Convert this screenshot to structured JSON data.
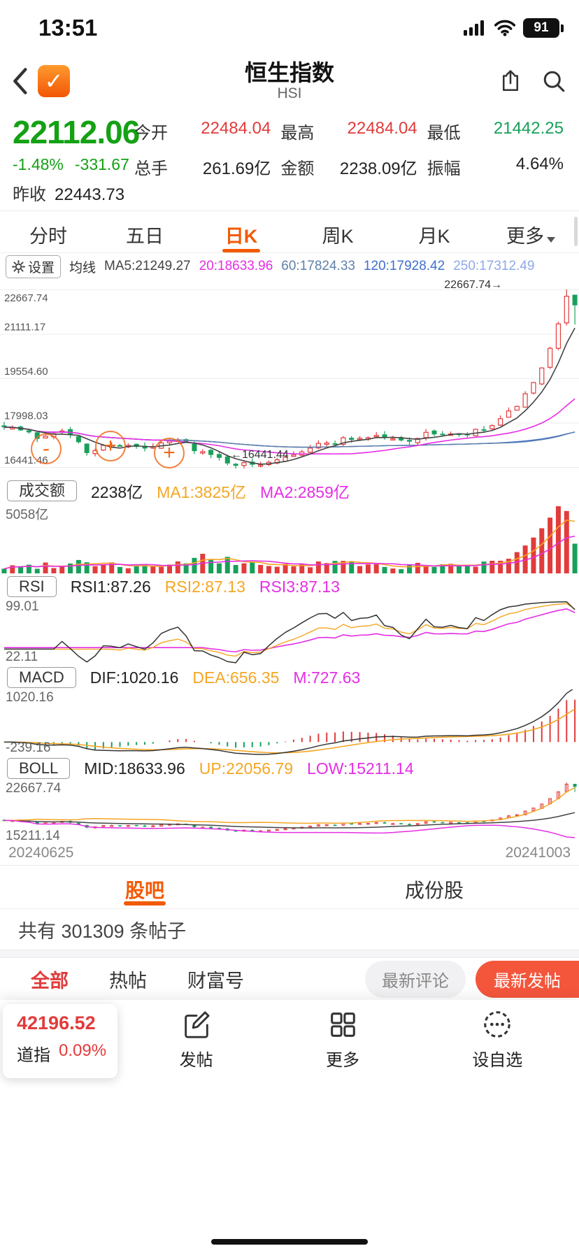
{
  "colors": {
    "up": "#e23b3b",
    "down": "#17a05a",
    "price_green": "#14a114",
    "accent_orange": "#f25a05",
    "line_orange": "#f5a623",
    "line_magenta": "#e52ee5",
    "line_dark": "#444444",
    "ma60": "#5f81a8",
    "ma120": "#3e6fd0",
    "ma250": "#8fa8e8",
    "grid": "#ececec",
    "axis_text": "#555555"
  },
  "status_bar": {
    "time": "13:51",
    "battery_pct": "91"
  },
  "header": {
    "title": "恒生指数",
    "subtitle": "HSI",
    "app_icon_glyph": "✓"
  },
  "quote": {
    "price": "22112.06",
    "change_pct": "-1.48%",
    "change_abs": "-331.67",
    "prev_close_label": "昨收",
    "prev_close_value": "22443.73",
    "stats": [
      {
        "label": "今开",
        "value": "22484.04",
        "color": "#e23b3b"
      },
      {
        "label": "最高",
        "value": "22484.04",
        "color": "#e23b3b"
      },
      {
        "label": "最低",
        "value": "21442.25",
        "color": "#17a05a"
      },
      {
        "label": "总手",
        "value": "261.69亿",
        "color": "#222222"
      },
      {
        "label": "金额",
        "value": "2238.09亿",
        "color": "#222222"
      },
      {
        "label": "振幅",
        "value": "4.64%",
        "color": "#222222"
      }
    ]
  },
  "period_tabs": [
    {
      "label": "分时"
    },
    {
      "label": "五日"
    },
    {
      "label": "日K"
    },
    {
      "label": "周K"
    },
    {
      "label": "月K"
    },
    {
      "label": "更多"
    }
  ],
  "ma_bar": {
    "settings_label": "设置",
    "prefix": "均线",
    "items": [
      {
        "text": "MA5:21249.27",
        "color": "#444444"
      },
      {
        "text": "20:18633.96",
        "color": "#e52ee5"
      },
      {
        "text": "60:17824.33",
        "color": "#5f81a8"
      },
      {
        "text": "120:17928.42",
        "color": "#3e6fd0"
      },
      {
        "text": "250:17312.49",
        "color": "#8fa8e8"
      }
    ]
  },
  "indicators": {
    "volume": {
      "box": "成交额",
      "items": [
        {
          "text": "2238亿",
          "color": "#222222"
        },
        {
          "text": "MA1:3825亿",
          "color": "#f5a623"
        },
        {
          "text": "MA2:2859亿",
          "color": "#e52ee5"
        }
      ],
      "axis_top": "5058亿"
    },
    "rsi": {
      "box": "RSI",
      "items": [
        {
          "text": "RSI1:87.26",
          "color": "#222222"
        },
        {
          "text": "RSI2:87.13",
          "color": "#f5a623"
        },
        {
          "text": "RSI3:87.13",
          "color": "#e52ee5"
        }
      ],
      "axis_top": "99.01",
      "axis_bottom": "22.11"
    },
    "macd": {
      "box": "MACD",
      "items": [
        {
          "text": "DIF:1020.16",
          "color": "#222222"
        },
        {
          "text": "DEA:656.35",
          "color": "#f5a623"
        },
        {
          "text": "M:727.63",
          "color": "#e52ee5"
        }
      ],
      "axis_top": "1020.16",
      "axis_bottom": "-239.16"
    },
    "boll": {
      "box": "BOLL",
      "items": [
        {
          "text": "MID:18633.96",
          "color": "#222222"
        },
        {
          "text": "UP:22056.79",
          "color": "#f5a623"
        },
        {
          "text": "LOW:15211.14",
          "color": "#e52ee5"
        }
      ],
      "axis_top": "22667.74",
      "axis_bottom": "15211.14"
    }
  },
  "chart_data": {
    "type": "candlestick",
    "title": "恒生指数 日K",
    "x_range": [
      "20240625",
      "20241003"
    ],
    "price_axis_labels": [
      "22667.74",
      "21111.17",
      "19554.60",
      "17998.03",
      "16441.46"
    ],
    "price_domain": [
      16441.46,
      22667.74
    ],
    "annotations": {
      "high_text": "22667.74→",
      "low_text": "←16441.44"
    },
    "markers": [
      {
        "symbol": "-"
      },
      {
        "symbol": "+"
      },
      {
        "symbol": "+"
      }
    ],
    "candle_count": 70,
    "close_anchors": [
      [
        0,
        17950
      ],
      [
        4,
        17480
      ],
      [
        7,
        17820
      ],
      [
        10,
        16950
      ],
      [
        13,
        17280
      ],
      [
        17,
        17060
      ],
      [
        21,
        17400
      ],
      [
        25,
        16820
      ],
      [
        28,
        16560
      ],
      [
        30,
        16500
      ],
      [
        33,
        16780
      ],
      [
        37,
        17150
      ],
      [
        41,
        17420
      ],
      [
        45,
        17550
      ],
      [
        48,
        17350
      ],
      [
        52,
        17650
      ],
      [
        55,
        17520
      ],
      [
        58,
        17750
      ],
      [
        60,
        18050
      ],
      [
        62,
        18600
      ],
      [
        64,
        19400
      ],
      [
        65,
        19900
      ],
      [
        66,
        20600
      ],
      [
        67,
        21500
      ],
      [
        68,
        22443.73
      ],
      [
        69,
        22112.06
      ]
    ],
    "volume_anchors": [
      [
        0,
        420
      ],
      [
        6,
        650
      ],
      [
        10,
        900
      ],
      [
        15,
        500
      ],
      [
        20,
        600
      ],
      [
        24,
        1000
      ],
      [
        30,
        700
      ],
      [
        36,
        520
      ],
      [
        40,
        820
      ],
      [
        46,
        480
      ],
      [
        52,
        560
      ],
      [
        56,
        520
      ],
      [
        58,
        700
      ],
      [
        60,
        950
      ],
      [
        61,
        1100
      ],
      [
        62,
        1600
      ],
      [
        63,
        2100
      ],
      [
        64,
        2700
      ],
      [
        65,
        3400
      ],
      [
        66,
        4200
      ],
      [
        67,
        5058
      ],
      [
        68,
        4700
      ],
      [
        69,
        2238
      ]
    ],
    "volume_max": 5058,
    "last_candle": {
      "open": 22484.04,
      "high": 22484.04,
      "low": 21442.25,
      "close": 22112.06
    },
    "prev_candle": {
      "close": 22443.73,
      "high": 22667.74
    },
    "period_low": 16441.44,
    "macd_domain": [
      -239.16,
      1020.16
    ],
    "rsi_domain": [
      22.11,
      99.01
    ],
    "boll_domain": [
      15211.14,
      22667.74
    ]
  },
  "social": {
    "tabs": [
      {
        "label": "股吧"
      },
      {
        "label": "成份股"
      }
    ],
    "posts_count": "共有 301309 条帖子",
    "filters": [
      {
        "label": "全部"
      },
      {
        "label": "热帖"
      },
      {
        "label": "财富号"
      }
    ],
    "filter_buttons": [
      {
        "label": "最新评论"
      },
      {
        "label": "最新发帖"
      }
    ]
  },
  "bottom_nav": {
    "ticker": {
      "value": "42196.52",
      "name": "道指",
      "pct": "0.09%"
    },
    "items": [
      {
        "label": "发帖"
      },
      {
        "label": "更多"
      },
      {
        "label": "设自选"
      }
    ]
  }
}
